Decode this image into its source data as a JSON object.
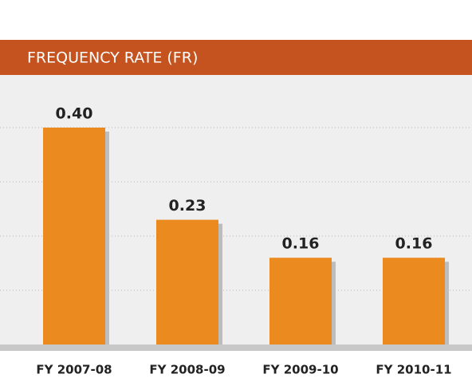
{
  "chart_data": {
    "type": "bar",
    "title": "FREQUENCY RATE (FR)",
    "categories": [
      "FY 2007-08",
      "FY 2008-09",
      "FY 2009-10",
      "FY 2010-11"
    ],
    "values": [
      0.4,
      0.23,
      0.16,
      0.16
    ],
    "value_labels": [
      "0.40",
      "0.23",
      "0.16",
      "0.16"
    ],
    "color": "#ea8a1f",
    "ylim": [
      0,
      0.5
    ],
    "yticks": [
      0.1,
      0.2,
      0.3,
      0.4
    ],
    "grid": true
  }
}
